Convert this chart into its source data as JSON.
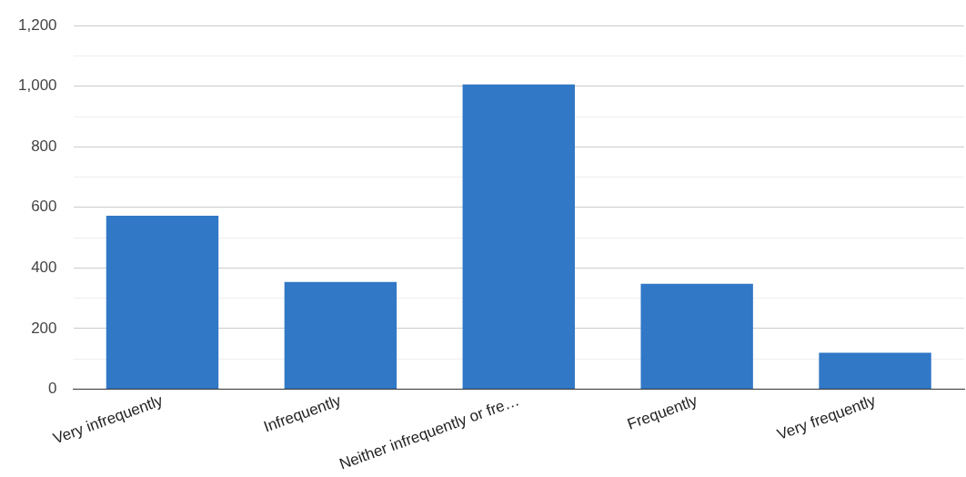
{
  "chart_data": {
    "type": "bar",
    "categories": [
      "Very infrequently",
      "Infrequently",
      "Neither infrequently or fre…",
      "Frequently",
      "Very frequently"
    ],
    "values": [
      572,
      354,
      1006,
      348,
      120
    ],
    "color": "#3178c6",
    "ylim": [
      0,
      1200
    ],
    "yticks": [
      0,
      {
        "value": 100,
        "label": null
      },
      200,
      {
        "value": 300,
        "label": null
      },
      400,
      {
        "value": 500,
        "label": null
      },
      600,
      {
        "value": 700,
        "label": null
      },
      800,
      {
        "value": 900,
        "label": null
      },
      {
        "value": 1000,
        "label": "1,000"
      },
      {
        "value": 1100,
        "label": null
      },
      {
        "value": 1200,
        "label": "1,200"
      }
    ],
    "grid": "y",
    "legend": false
  }
}
